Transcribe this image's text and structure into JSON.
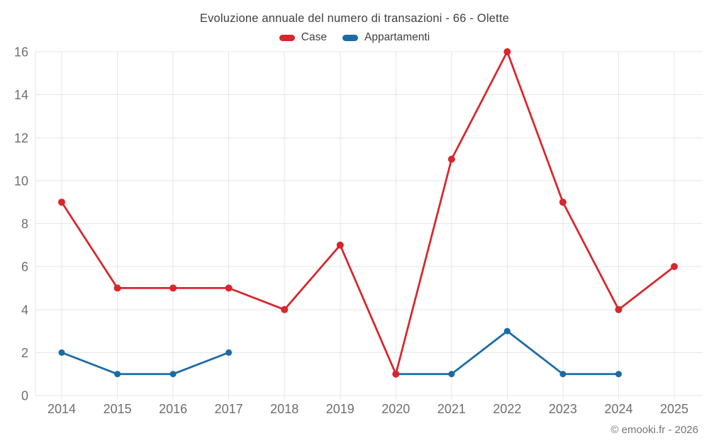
{
  "title": "Evoluzione annuale del numero di transazioni - 66 - Olette",
  "legend": {
    "items": [
      {
        "label": "Case",
        "color": "#d8262c"
      },
      {
        "label": "Appartamenti",
        "color": "#1a6ba6"
      }
    ]
  },
  "footer": {
    "copyright": "© emooki.fr - 2026"
  },
  "colors": {
    "grid": "#e6e6e6",
    "axis_text": "#6e6e6e",
    "title_text": "#3f3f3f",
    "footer_text": "#757575",
    "background": "#ffffff"
  },
  "chart_data": {
    "type": "line",
    "title": "Evoluzione annuale del numero di transazioni - 66 - Olette",
    "categories": [
      "2014",
      "2015",
      "2016",
      "2017",
      "2018",
      "2019",
      "2020",
      "2021",
      "2022",
      "2023",
      "2024",
      "2025"
    ],
    "series": [
      {
        "name": "Case",
        "color": "#d8262c",
        "values": [
          9,
          5,
          5,
          5,
          4,
          7,
          1,
          11,
          16,
          9,
          4,
          6
        ]
      },
      {
        "name": "Appartamenti",
        "color": "#1a6ba6",
        "values": [
          2,
          1,
          1,
          2,
          null,
          null,
          1,
          1,
          3,
          1,
          1,
          null
        ]
      }
    ],
    "xlabel": "",
    "ylabel": "",
    "ylim": [
      0,
      16
    ],
    "ytick_step": 2,
    "grid": true,
    "legend_position": "top",
    "annotations": [
      "© emooki.fr - 2026"
    ]
  }
}
